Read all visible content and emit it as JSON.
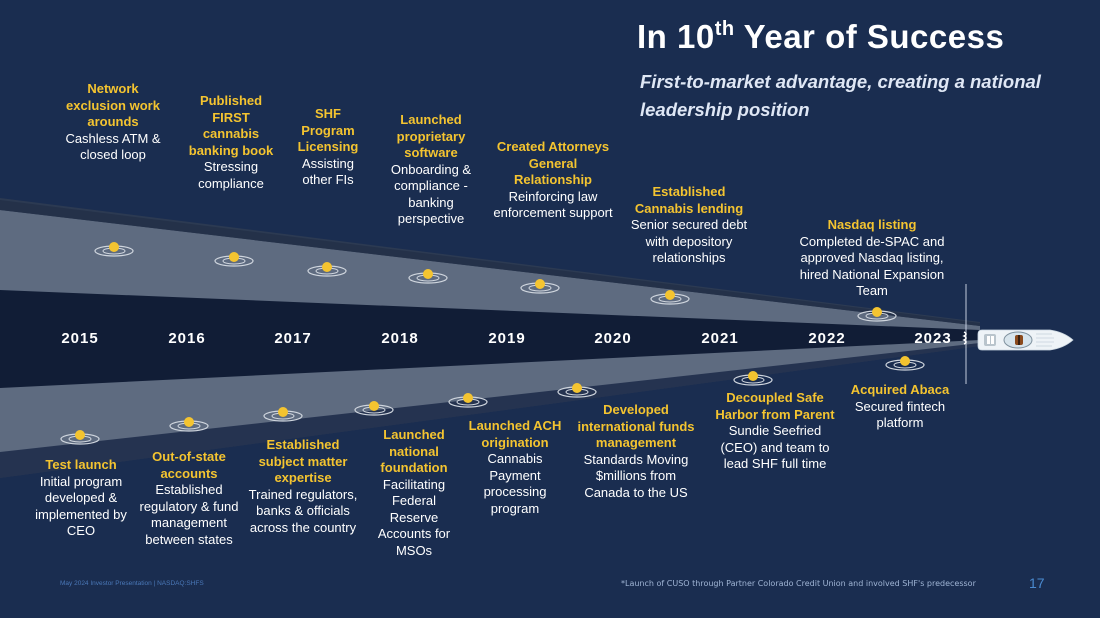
{
  "header": {
    "title_prefix": "In 10",
    "title_sup": "th",
    "title_suffix": " Year of Success",
    "subtitle": "First-to-market advantage, creating a national leadership position"
  },
  "timeline": {
    "years": [
      "2015",
      "2016",
      "2017",
      "2018",
      "2019",
      "2020",
      "2021",
      "2022",
      "2023"
    ],
    "top_events": [
      {
        "head": "Network exclusion work arounds",
        "desc": "Cashless ATM & closed loop"
      },
      {
        "head": "Published FIRST cannabis banking book",
        "desc": "Stressing compliance"
      },
      {
        "head": "SHF Program Licensing",
        "desc": "Assisting other FIs"
      },
      {
        "head": "Launched proprietary software",
        "desc": "Onboarding & compliance - banking perspective"
      },
      {
        "head": "Created Attorneys General Relationship",
        "desc": "Reinforcing law enforcement support"
      },
      {
        "head": "Established Cannabis lending",
        "desc": "Senior secured debt with depository relationships"
      },
      {
        "head": "Nasdaq listing",
        "desc": "Completed de-SPAC and approved Nasdaq listing, hired National Expansion Team"
      }
    ],
    "bottom_events": [
      {
        "head": "Test launch",
        "desc": "Initial program developed & implemented by CEO"
      },
      {
        "head": "Out-of-state accounts",
        "desc": "Established regulatory & fund management between states"
      },
      {
        "head": "Established subject matter expertise",
        "desc": "Trained regulators, banks & officials across the country"
      },
      {
        "head": "Launched national foundation",
        "desc": "Facilitating Federal Reserve Accounts for MSOs"
      },
      {
        "head": "Launched ACH origination",
        "desc": "Cannabis Payment processing program"
      },
      {
        "head": "Developed international funds management",
        "desc": "Standards Moving $millions from Canada to the US"
      },
      {
        "head": "Decoupled Safe Harbor from Parent",
        "desc": "Sundie Seefried (CEO) and team to lead SHF full time"
      },
      {
        "head": "Acquired Abaca",
        "desc": "Secured fintech platform"
      }
    ]
  },
  "footer": {
    "left": "May 2024 Investor Presentation  |  NASDAQ:SHFS",
    "footnote": "*Launch of CUSO through Partner Colorado Credit Union and involved SHF's predecessor",
    "page_number": "17"
  },
  "colors": {
    "background": "#1a2d50",
    "accent_yellow": "#f4c430",
    "wake_light": "#5e6b80",
    "wake_dark": "#111d36"
  }
}
